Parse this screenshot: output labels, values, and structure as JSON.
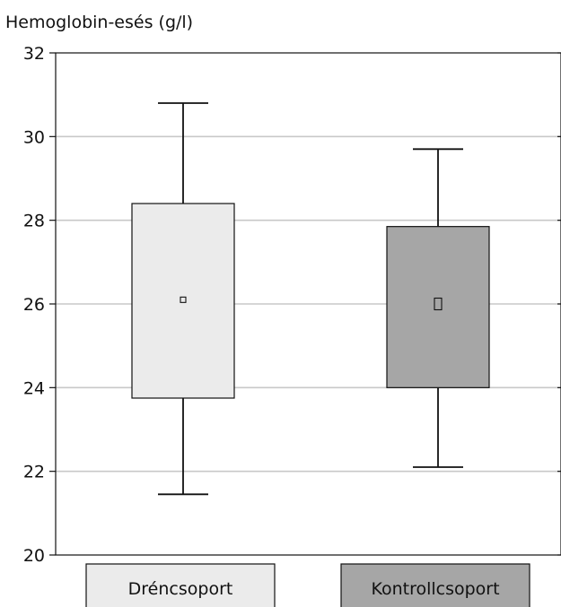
{
  "chart_data": {
    "type": "box",
    "ylabel": "Hemoglobin-esés (g/l)",
    "ylim": [
      20,
      32
    ],
    "yticks": [
      20,
      22,
      24,
      26,
      28,
      30,
      32
    ],
    "grid": true,
    "categories": [
      "Dréncsoport",
      "Kontrollcsoport"
    ],
    "series": [
      {
        "name": "Dréncsoport",
        "whisker_low": 21.45,
        "q1": 23.75,
        "median": 26.1,
        "q3": 28.4,
        "whisker_high": 30.8,
        "color": "#ebebeb"
      },
      {
        "name": "Kontrollcsoport",
        "whisker_low": 22.1,
        "q1": 24.0,
        "median": 26.0,
        "q3": 27.85,
        "whisker_high": 29.7,
        "color": "#a6a6a6"
      }
    ]
  }
}
